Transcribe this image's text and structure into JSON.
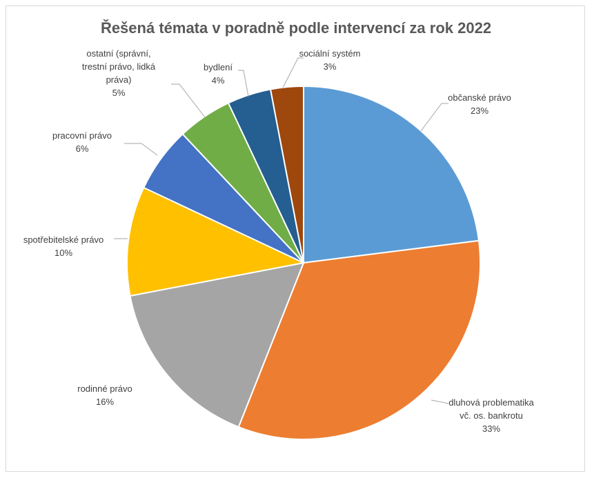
{
  "chart_data": {
    "type": "pie",
    "title": "Řešená témata v poradně podle intervencí za rok 2022",
    "slices": [
      {
        "name": "občanské právo",
        "label_lines": [
          "občanské právo",
          "23%"
        ],
        "value": 23,
        "color": "#5b9bd5"
      },
      {
        "name": "dluhová problematika vč. os. bankrotu",
        "label_lines": [
          "dluhová problematika",
          "vč. os. bankrotu",
          "33%"
        ],
        "value": 33,
        "color": "#ed7d31"
      },
      {
        "name": "rodinné právo",
        "label_lines": [
          "rodinné právo",
          "16%"
        ],
        "value": 16,
        "color": "#a5a5a5"
      },
      {
        "name": "spotřebitelské právo",
        "label_lines": [
          "spotřebitelské právo",
          "10%"
        ],
        "value": 10,
        "color": "#ffc000"
      },
      {
        "name": "pracovní právo",
        "label_lines": [
          "pracovní právo",
          "6%"
        ],
        "value": 6,
        "color": "#4472c4"
      },
      {
        "name": "ostatní (správní, trestní právo, lidká práva)",
        "label_lines": [
          "ostatní (správní,",
          "trestní právo, lidká",
          "práva)",
          "5%"
        ],
        "value": 5,
        "color": "#70ad47"
      },
      {
        "name": "bydlení",
        "label_lines": [
          "bydlení",
          "4%"
        ],
        "value": 4,
        "color": "#255e91"
      },
      {
        "name": "sociální systém",
        "label_lines": [
          "sociální systém",
          "3%"
        ],
        "value": 3,
        "color": "#9e480e"
      }
    ]
  }
}
